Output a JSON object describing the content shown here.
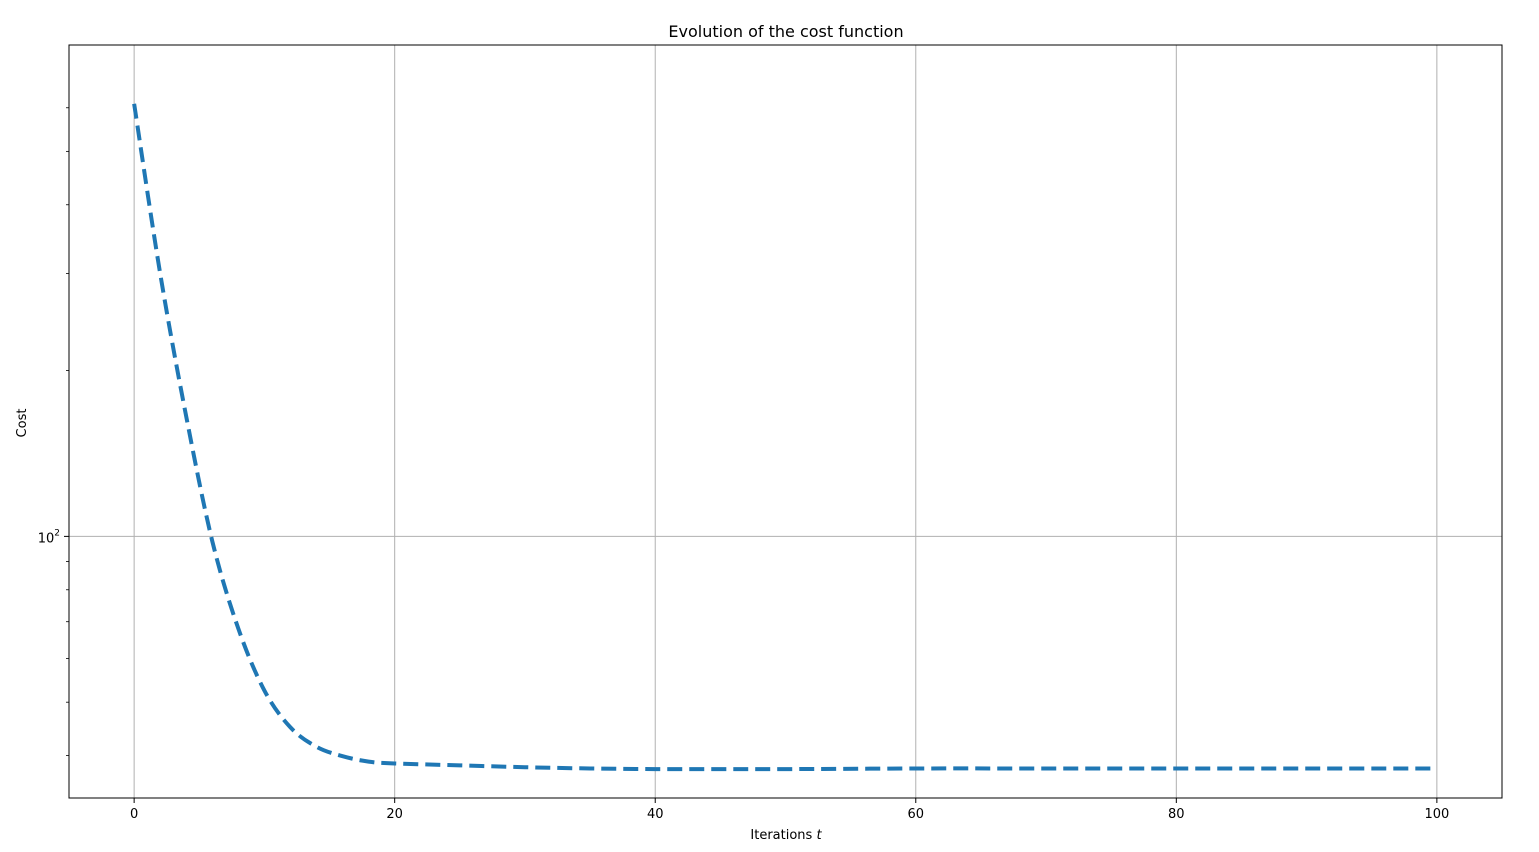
{
  "chart_data": {
    "type": "line",
    "title": "Evolution of the cost function",
    "xlabel": "Iterations",
    "xlabel_var": "t",
    "ylabel": "Cost",
    "yscale": "log",
    "xlim": [
      -5,
      105
    ],
    "ylim": [
      33.5,
      780
    ],
    "grid": true,
    "x_ticks": [
      0,
      20,
      40,
      60,
      80,
      100
    ],
    "y_major_ticks": [
      {
        "value": 100,
        "base": "10",
        "exp": "2"
      }
    ],
    "y_minor_ticks": [
      40,
      50,
      60,
      70,
      80,
      90,
      200,
      300,
      400,
      500,
      600
    ],
    "line_style": "dashed",
    "color": "#1f77b4",
    "series": [
      {
        "x": [
          0,
          2,
          4,
          6,
          8,
          10,
          12,
          14,
          16,
          18,
          20,
          25,
          30,
          35,
          40,
          45,
          50,
          60,
          70,
          80,
          90,
          100
        ],
        "values": [
          610,
          300,
          165,
          98,
          68,
          52.5,
          45,
          41.5,
          39.9,
          39.0,
          38.7,
          38.4,
          38.1,
          37.9,
          37.8,
          37.8,
          37.8,
          37.9,
          37.9,
          37.9,
          37.9,
          37.9
        ]
      }
    ]
  }
}
